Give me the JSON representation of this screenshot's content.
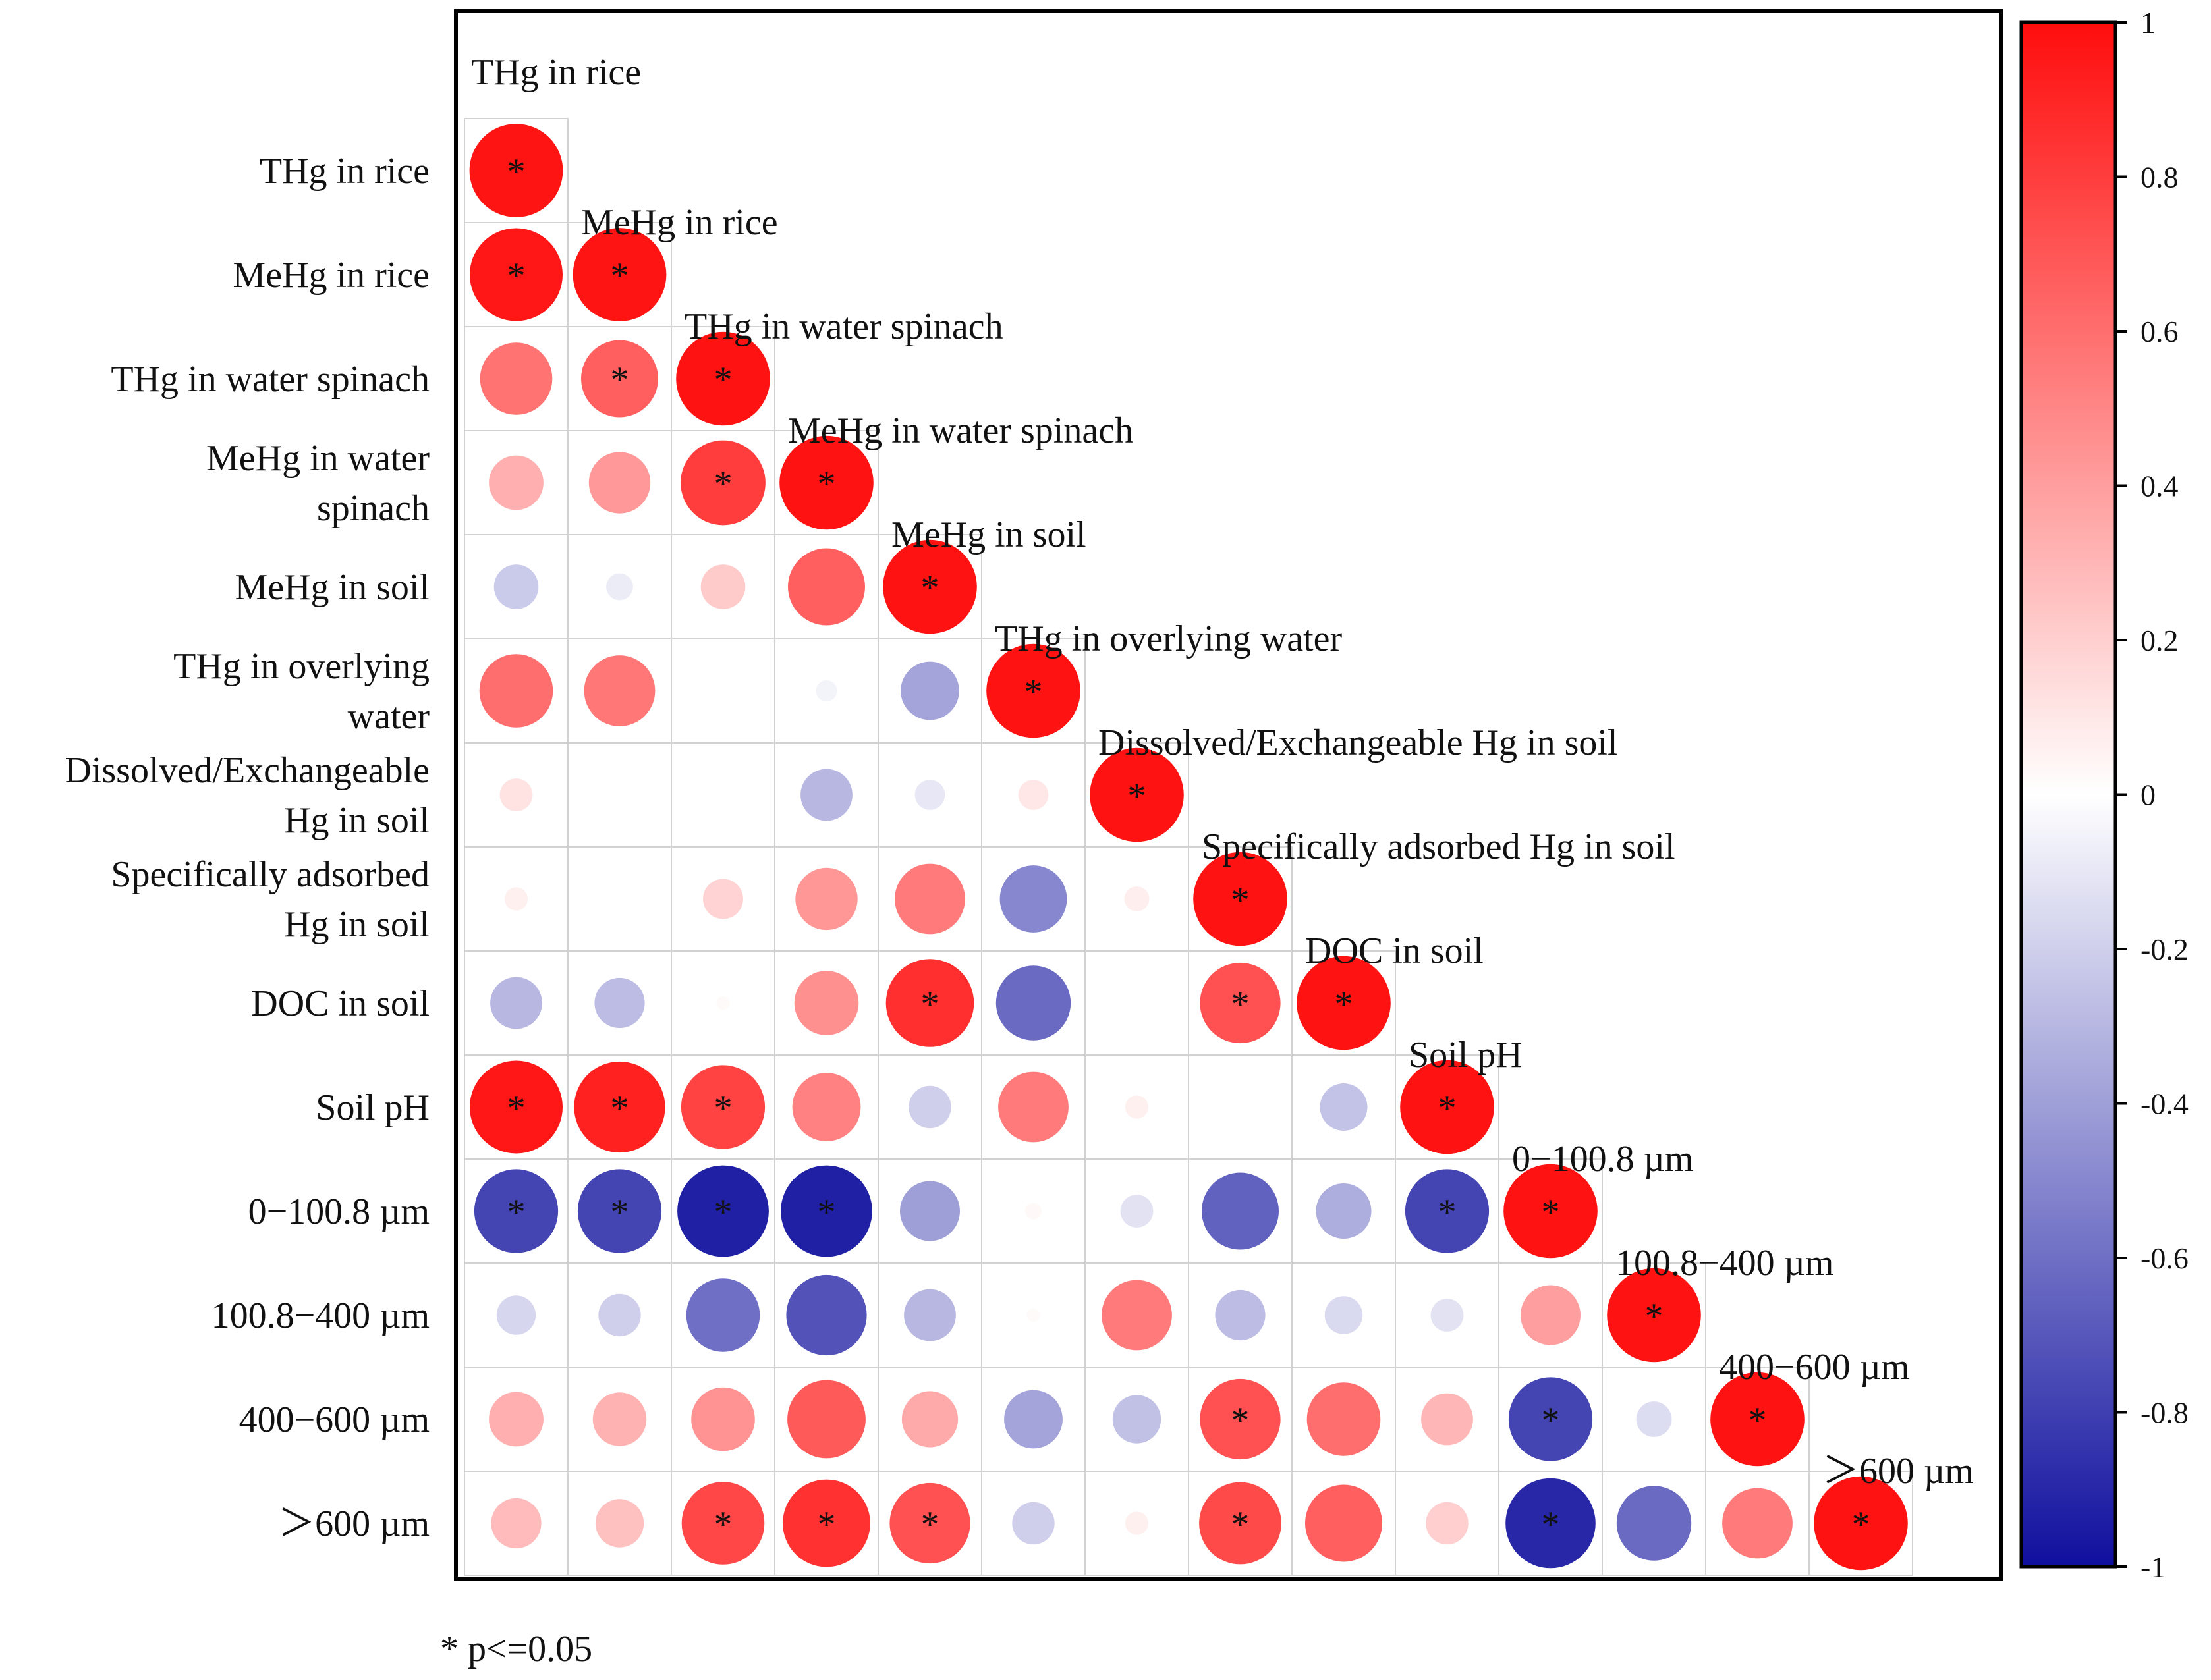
{
  "chart_data": {
    "type": "heatmap",
    "subtype": "correlation-circle-matrix-lower-triangle",
    "variables": [
      "THg in rice",
      "MeHg in rice",
      "THg in water spinach",
      "MeHg in water spinach",
      "MeHg in soil",
      "THg in overlying water",
      "Dissolved/Exchangeable Hg in soil",
      "Specifically adsorbed Hg in soil",
      "DOC in soil",
      "Soil pH",
      "0−100.8 µm",
      "100.8−400 µm",
      "400−600 µm",
      "＞600 µm"
    ],
    "row_labels": [
      [
        "THg in rice"
      ],
      [
        "MeHg in rice"
      ],
      [
        "THg in water spinach"
      ],
      [
        "MeHg in water",
        "spinach"
      ],
      [
        "MeHg in soil"
      ],
      [
        "THg in overlying",
        "water"
      ],
      [
        "Dissolved/Exchangeable",
        "Hg in soil"
      ],
      [
        "Specifically adsorbed",
        "Hg in soil"
      ],
      [
        "DOC in soil"
      ],
      [
        "Soil pH"
      ],
      [
        "0−100.8 µm"
      ],
      [
        "100.8−400 µm"
      ],
      [
        "400−600 µm"
      ],
      [
        "＞600 µm"
      ]
    ],
    "matrix_lower": [
      [
        0.97
      ],
      [
        0.96,
        0.97
      ],
      [
        0.58,
        0.66,
        0.98
      ],
      [
        0.33,
        0.42,
        0.8,
        0.98
      ],
      [
        -0.22,
        -0.08,
        0.22,
        0.66,
        0.98
      ],
      [
        0.6,
        0.56,
        0.0,
        -0.05,
        -0.38,
        0.98
      ],
      [
        0.12,
        0.0,
        0.0,
        -0.3,
        -0.1,
        0.1,
        0.98
      ],
      [
        0.06,
        0.0,
        0.18,
        0.43,
        0.55,
        -0.5,
        0.07,
        0.98
      ],
      [
        -0.3,
        -0.28,
        0.02,
        0.46,
        0.86,
        -0.62,
        0.0,
        0.72,
        0.98
      ],
      [
        0.96,
        0.92,
        0.78,
        0.52,
        -0.2,
        0.55,
        0.06,
        0.0,
        -0.25,
        0.98
      ],
      [
        -0.78,
        -0.78,
        -0.93,
        -0.93,
        -0.4,
        0.03,
        -0.12,
        -0.66,
        -0.34,
        -0.78,
        0.98
      ],
      [
        -0.17,
        -0.2,
        -0.6,
        -0.72,
        -0.3,
        0.02,
        0.55,
        -0.28,
        -0.16,
        -0.12,
        0.4,
        0.98
      ],
      [
        0.33,
        0.32,
        0.45,
        0.68,
        0.35,
        -0.38,
        -0.26,
        0.72,
        0.6,
        0.3,
        -0.78,
        -0.14,
        0.98
      ],
      [
        0.28,
        0.26,
        0.76,
        0.85,
        0.72,
        -0.2,
        0.06,
        0.75,
        0.66,
        0.2,
        -0.9,
        -0.62,
        0.55,
        0.98
      ]
    ],
    "significant_lower": [
      [
        1
      ],
      [
        1,
        1
      ],
      [
        0,
        1,
        1
      ],
      [
        0,
        0,
        1,
        1
      ],
      [
        0,
        0,
        0,
        0,
        1
      ],
      [
        0,
        0,
        0,
        0,
        0,
        1
      ],
      [
        0,
        0,
        0,
        0,
        0,
        0,
        1
      ],
      [
        0,
        0,
        0,
        0,
        0,
        0,
        0,
        1
      ],
      [
        0,
        0,
        0,
        0,
        1,
        0,
        0,
        1,
        1
      ],
      [
        1,
        1,
        1,
        0,
        0,
        0,
        0,
        0,
        0,
        1
      ],
      [
        1,
        1,
        1,
        1,
        0,
        0,
        0,
        0,
        0,
        1,
        1
      ],
      [
        0,
        0,
        0,
        0,
        0,
        0,
        0,
        0,
        0,
        0,
        0,
        1
      ],
      [
        0,
        0,
        0,
        0,
        0,
        0,
        0,
        1,
        0,
        0,
        1,
        0,
        1
      ],
      [
        0,
        0,
        1,
        1,
        1,
        0,
        0,
        1,
        0,
        0,
        1,
        0,
        0,
        1
      ]
    ],
    "significance_marker": "*",
    "colorbar": {
      "range": [
        -1,
        1
      ],
      "ticks": [
        1,
        0.8,
        0.6,
        0.4,
        0.2,
        0,
        -0.2,
        -0.4,
        -0.6,
        -0.8,
        -1
      ],
      "tick_labels": [
        "1",
        "0.8",
        "0.6",
        "0.4",
        "0.2",
        "0",
        "-0.2",
        "-0.4",
        "-0.6",
        "-0.8",
        "-1"
      ],
      "colors": {
        "negative": "#0f0f9e",
        "zero": "#ffffff",
        "positive": "#ff0d0d"
      }
    },
    "footnote": "* p<=0.05",
    "cell_border_color": "#d2d2d2",
    "frame_color": "#000000"
  }
}
